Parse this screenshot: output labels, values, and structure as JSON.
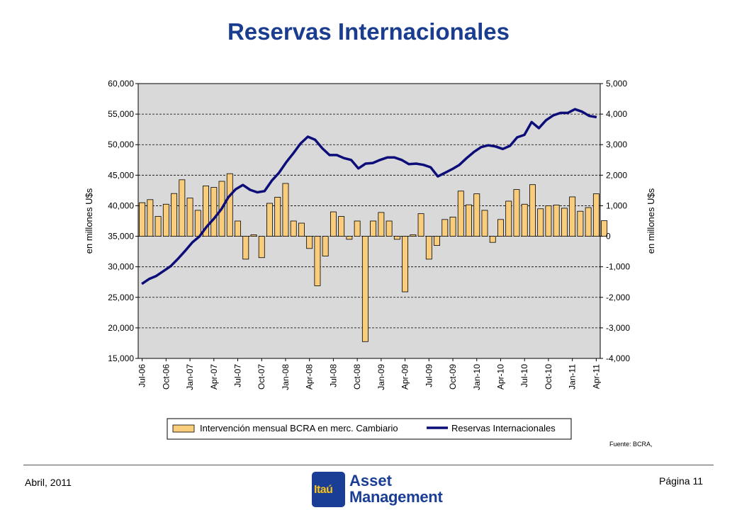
{
  "page": {
    "title": "Reservas Internacionales",
    "source": "Fuente: BCRA,",
    "date": "Abril, 2011",
    "page_number": "Página 11",
    "logo": {
      "brand": "Itaú",
      "line1": "Asset",
      "line2": "Management"
    }
  },
  "chart_data": {
    "type": "bar+line",
    "title": "",
    "ylabel_left": "en millones U$s",
    "ylabel_right": "en millones U$s",
    "ylim_left": [
      15000,
      60000
    ],
    "ylim_right": [
      -4000,
      5000
    ],
    "yticks_left": [
      "15,000",
      "20,000",
      "25,000",
      "30,000",
      "35,000",
      "40,000",
      "45,000",
      "50,000",
      "55,000",
      "60,000"
    ],
    "yticks_right": [
      "-4,000",
      "-3,000",
      "-2,000",
      "-1,000",
      "0",
      "1,000",
      "2,000",
      "3,000",
      "4,000",
      "5,000"
    ],
    "x_tick_labels": [
      "Jul-06",
      "Oct-06",
      "Jan-07",
      "Apr-07",
      "Jul-07",
      "Oct-07",
      "Jan-08",
      "Apr-08",
      "Jul-08",
      "Oct-08",
      "Jan-09",
      "Apr-09",
      "Jul-09",
      "Oct-09",
      "Jan-10",
      "Apr-10",
      "Jul-10",
      "Oct-10",
      "Jan-11",
      "Apr-11"
    ],
    "grid": true,
    "legend_position": "bottom",
    "colors": {
      "plot_bg": "#d9d9d9",
      "bar_fill": "#f9cd7b",
      "bar_stroke": "#000000",
      "line": "#0d0d7a"
    },
    "series": [
      {
        "name": "Intervención mensual BCRA en merc. Cambiario",
        "type": "bar",
        "axis": "right",
        "values": [
          1100,
          1200,
          650,
          1050,
          1400,
          1850,
          1250,
          850,
          1650,
          1600,
          1800,
          2050,
          500,
          -750,
          50,
          -700,
          1080,
          1280,
          1730,
          500,
          430,
          -400,
          -1620,
          -650,
          800,
          650,
          -100,
          500,
          -3450,
          500,
          780,
          500,
          -100,
          -1820,
          50,
          740,
          -750,
          -300,
          550,
          630,
          1480,
          1030,
          1390,
          850,
          -200,
          550,
          1150,
          1530,
          1050,
          1690,
          900,
          1000,
          1020,
          920,
          1290,
          820,
          940,
          1390,
          510
        ]
      },
      {
        "name": "Reservas Internacionales",
        "type": "line",
        "axis": "left",
        "values": [
          27200,
          28000,
          28500,
          29300,
          30100,
          31300,
          32600,
          34000,
          35000,
          36600,
          37900,
          39400,
          41400,
          42700,
          43400,
          42600,
          42200,
          42400,
          44100,
          45400,
          47100,
          48600,
          50200,
          51300,
          50800,
          49400,
          48300,
          48300,
          47800,
          47500,
          46100,
          46900,
          47000,
          47500,
          47900,
          47900,
          47500,
          46800,
          46900,
          46700,
          46300,
          44800,
          45400,
          46000,
          46700,
          47800,
          48800,
          49600,
          49900,
          49700,
          49300,
          49800,
          51200,
          51600,
          53700,
          52700,
          54000,
          54800,
          55200,
          55200,
          55800,
          55400,
          54700,
          54500
        ]
      }
    ]
  }
}
